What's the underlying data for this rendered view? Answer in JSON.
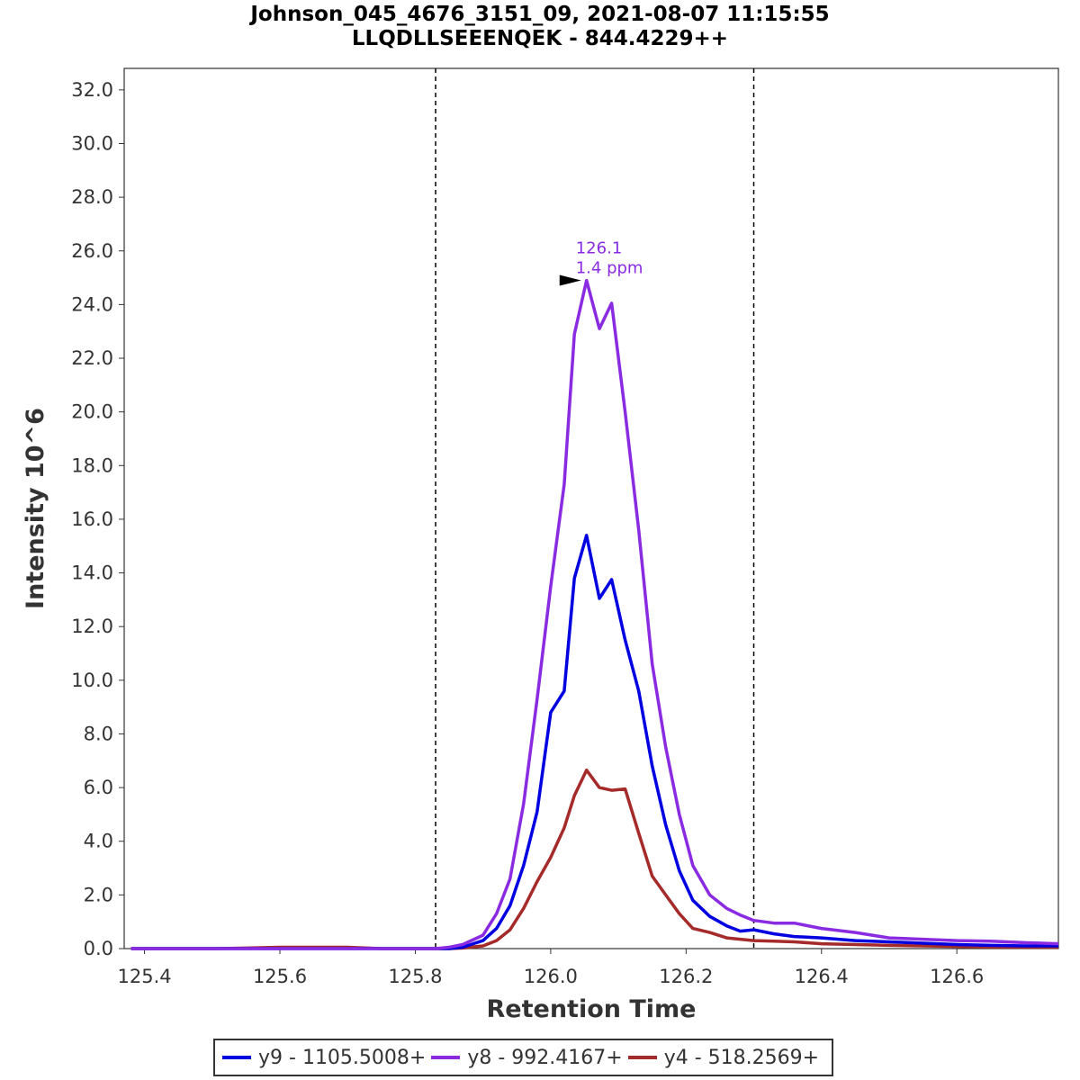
{
  "title_line1": "Johnson_045_4676_3151_09, 2021-08-07 11:15:55",
  "title_line2": "LLQDLLSEEENQEK - 844.4229++",
  "chart_data": {
    "type": "line",
    "xlabel": "Retention Time",
    "ylabel": "Intensity 10^6",
    "xlim": [
      125.37,
      126.75
    ],
    "ylim": [
      0,
      32.8
    ],
    "x_ticks": [
      "125.4",
      "125.6",
      "125.8",
      "126.0",
      "126.2",
      "126.4",
      "126.6"
    ],
    "x_tick_values": [
      125.4,
      125.6,
      125.8,
      126.0,
      126.2,
      126.4,
      126.6
    ],
    "y_ticks": [
      "0.0",
      "2.0",
      "4.0",
      "6.0",
      "8.0",
      "10.0",
      "12.0",
      "14.0",
      "16.0",
      "18.0",
      "20.0",
      "22.0",
      "24.0",
      "26.0",
      "28.0",
      "30.0",
      "32.0"
    ],
    "y_tick_values": [
      0,
      2,
      4,
      6,
      8,
      10,
      12,
      14,
      16,
      18,
      20,
      22,
      24,
      26,
      28,
      30,
      32
    ],
    "boundaries": [
      125.83,
      126.3
    ],
    "annotation": {
      "x": 126.053,
      "y": 24.9,
      "line1": "126.1",
      "line2": "1.4 ppm",
      "color": "#8a2be2"
    },
    "grid": false,
    "legend_position": "bottom",
    "series": [
      {
        "name": "y9 - 1105.5008+",
        "color": "#0000e0",
        "x": [
          125.38,
          125.45,
          125.5,
          125.55,
          125.6,
          125.65,
          125.7,
          125.75,
          125.8,
          125.83,
          125.85,
          125.87,
          125.9,
          125.92,
          125.94,
          125.96,
          125.98,
          126.0,
          126.02,
          126.035,
          126.053,
          126.072,
          126.09,
          126.11,
          126.13,
          126.15,
          126.17,
          126.19,
          126.21,
          126.235,
          126.26,
          126.28,
          126.3,
          126.33,
          126.36,
          126.4,
          126.45,
          126.5,
          126.55,
          126.6,
          126.65,
          126.7,
          126.75
        ],
        "y": [
          0.0,
          0.0,
          0.0,
          0.0,
          0.0,
          0.0,
          0.0,
          0.0,
          0.0,
          0.0,
          0.0,
          0.05,
          0.3,
          0.75,
          1.6,
          3.1,
          5.1,
          8.8,
          9.6,
          13.8,
          15.4,
          13.05,
          13.75,
          11.5,
          9.6,
          6.8,
          4.6,
          2.9,
          1.8,
          1.2,
          0.85,
          0.65,
          0.7,
          0.55,
          0.45,
          0.4,
          0.3,
          0.25,
          0.2,
          0.15,
          0.12,
          0.1,
          0.1
        ]
      },
      {
        "name": "y8 - 992.4167+",
        "color": "#8a2be2",
        "x": [
          125.38,
          125.45,
          125.5,
          125.55,
          125.6,
          125.65,
          125.7,
          125.75,
          125.8,
          125.83,
          125.85,
          125.87,
          125.9,
          125.92,
          125.94,
          125.96,
          125.98,
          126.0,
          126.02,
          126.035,
          126.053,
          126.072,
          126.09,
          126.11,
          126.13,
          126.15,
          126.17,
          126.19,
          126.21,
          126.235,
          126.26,
          126.28,
          126.3,
          126.33,
          126.36,
          126.4,
          126.45,
          126.5,
          126.55,
          126.6,
          126.65,
          126.7,
          126.75
        ],
        "y": [
          0.0,
          0.0,
          0.0,
          0.0,
          0.0,
          0.0,
          0.0,
          0.0,
          0.0,
          0.0,
          0.05,
          0.15,
          0.5,
          1.3,
          2.6,
          5.4,
          9.3,
          13.5,
          17.3,
          22.9,
          24.9,
          23.1,
          24.05,
          20.0,
          15.6,
          10.6,
          7.5,
          5.0,
          3.1,
          2.0,
          1.5,
          1.25,
          1.05,
          0.95,
          0.95,
          0.75,
          0.6,
          0.4,
          0.35,
          0.3,
          0.28,
          0.22,
          0.18
        ]
      },
      {
        "name": "y4 - 518.2569+",
        "color": "#a52a2a",
        "x": [
          125.38,
          125.45,
          125.5,
          125.55,
          125.6,
          125.65,
          125.7,
          125.75,
          125.8,
          125.83,
          125.85,
          125.87,
          125.9,
          125.92,
          125.94,
          125.96,
          125.98,
          126.0,
          126.02,
          126.035,
          126.053,
          126.072,
          126.09,
          126.11,
          126.13,
          126.15,
          126.17,
          126.19,
          126.21,
          126.235,
          126.26,
          126.28,
          126.3,
          126.33,
          126.36,
          126.4,
          126.45,
          126.5,
          126.55,
          126.6,
          126.65,
          126.7,
          126.75
        ],
        "y": [
          0.0,
          0.0,
          0.0,
          0.02,
          0.05,
          0.05,
          0.05,
          0.0,
          0.0,
          0.0,
          0.0,
          0.02,
          0.1,
          0.3,
          0.7,
          1.5,
          2.5,
          3.4,
          4.5,
          5.7,
          6.65,
          6.0,
          5.9,
          5.95,
          4.3,
          2.7,
          2.0,
          1.3,
          0.75,
          0.6,
          0.4,
          0.35,
          0.3,
          0.28,
          0.25,
          0.18,
          0.15,
          0.12,
          0.1,
          0.08,
          0.06,
          0.05,
          0.05
        ]
      }
    ]
  }
}
